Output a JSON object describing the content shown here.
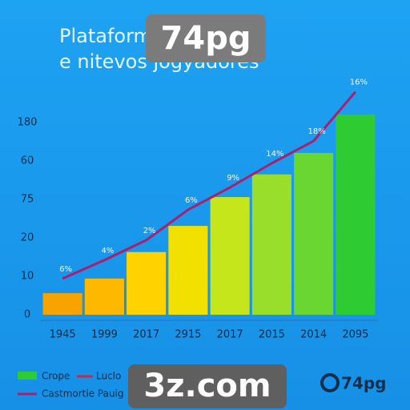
{
  "chart_data": {
    "type": "bar",
    "title_lines": [
      "Plataform esctenco",
      "e nitevos jogyadores"
    ],
    "categories": [
      "1945",
      "1999",
      "2017",
      "2915",
      "2017",
      "2015",
      "2014",
      "2095"
    ],
    "series": [
      {
        "name": "Crope",
        "colors": [
          "#f7a400",
          "#ffb800",
          "#ffd200",
          "#f2e000",
          "#c4e61a",
          "#98de2a",
          "#6ad632",
          "#2ecb32"
        ],
        "values": [
          5.6,
          9.4,
          16.3,
          23.1,
          30.6,
          36.5,
          42.1,
          52.1
        ]
      },
      {
        "name": "Castmortie Pauig",
        "type": "line",
        "color": "#a8206e",
        "values": [
          9.4,
          14.2,
          19.4,
          27.3,
          33.1,
          39.4,
          45.2,
          58
        ]
      }
    ],
    "extra_legend": {
      "name": "Luclo",
      "color": "#c8284a"
    },
    "annotations": [
      "6%",
      "4%",
      "2%",
      "6%",
      "9%",
      "14%",
      "18%",
      "16%"
    ],
    "ylim": [
      0,
      60
    ],
    "yticks": [
      0,
      10,
      20,
      {
        "value": 30,
        "label": "75"
      },
      {
        "value": 40,
        "label": "60"
      },
      {
        "value": 50,
        "label": "180"
      }
    ],
    "watermarks": [
      "74pg",
      "3z.com"
    ],
    "logo": "74pg"
  }
}
